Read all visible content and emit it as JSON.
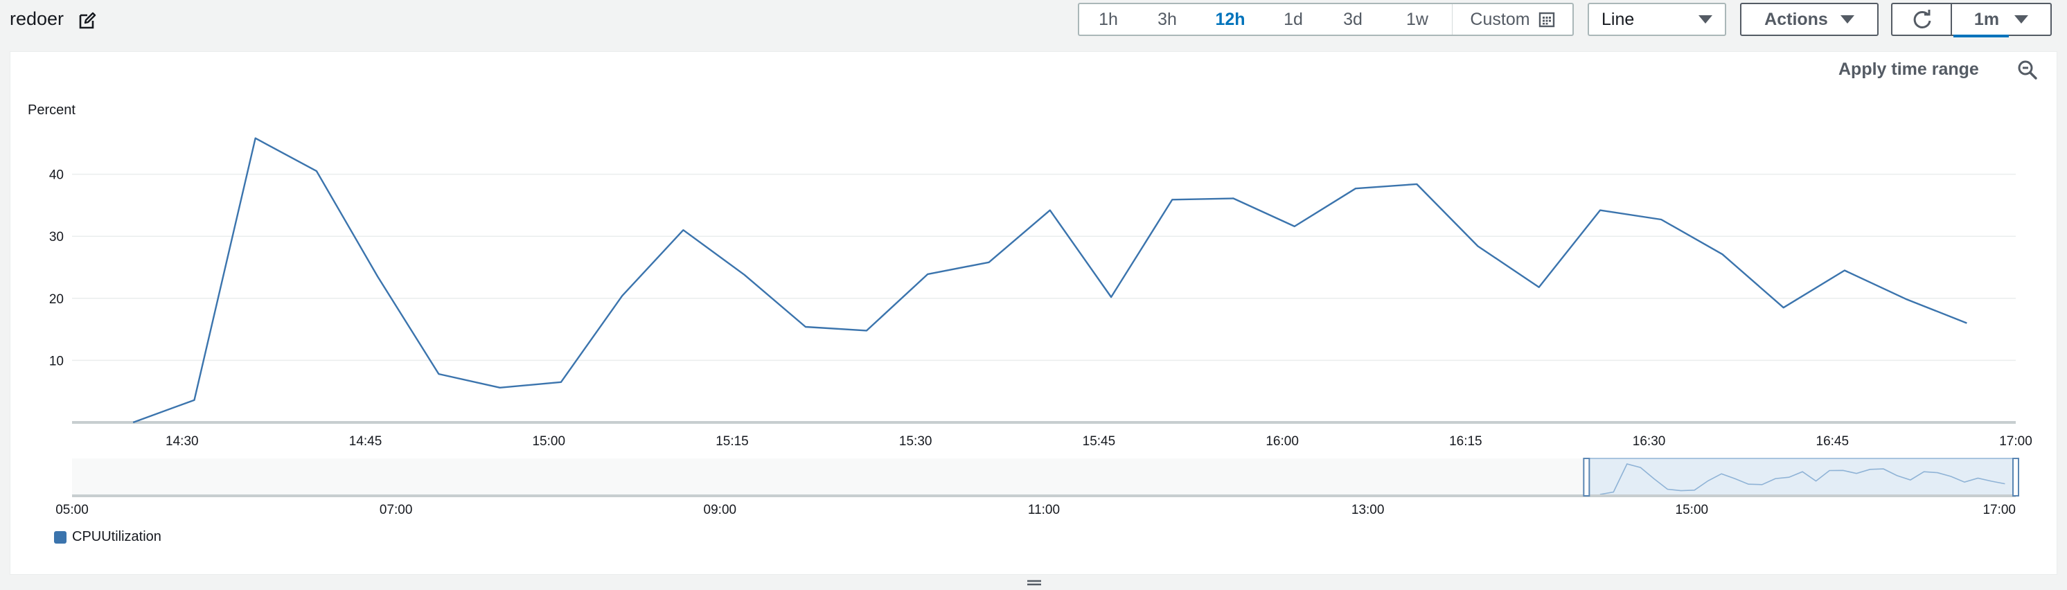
{
  "widget": {
    "title": "redoer",
    "edit_icon": "edit-icon",
    "time_range": {
      "options": [
        "1h",
        "3h",
        "12h",
        "1d",
        "3d",
        "1w"
      ],
      "selected": "12h",
      "custom_label": "Custom",
      "custom_icon": "calendar-icon"
    },
    "chart_type_label": "Line",
    "actions_label": "Actions",
    "refresh_icon": "refresh-icon",
    "interval_label": "1m",
    "apply_time_range_label": "Apply time range",
    "zoom_icon": "zoom-out-icon",
    "colors": {
      "accent": "#0073bb",
      "series": "#3b74ad",
      "border": "#aab7b8",
      "background": "#f2f3f3"
    }
  },
  "chart_data": {
    "type": "line",
    "ylabel": "Percent",
    "yticks": [
      10,
      20,
      30,
      40
    ],
    "ylim": [
      0,
      50
    ],
    "xlim": [
      "14:21",
      "17:00"
    ],
    "xticks": [
      "14:30",
      "14:45",
      "15:00",
      "15:15",
      "15:30",
      "15:45",
      "16:00",
      "16:15",
      "16:30",
      "16:45",
      "17:00"
    ],
    "grid": true,
    "legend_position": "bottom-left",
    "series": [
      {
        "name": "CPUUtilization",
        "color": "#3b74ad",
        "points": [
          [
            "14:26",
            0.0
          ],
          [
            "14:31",
            3.6
          ],
          [
            "14:36",
            45.8
          ],
          [
            "14:41",
            40.5
          ],
          [
            "14:46",
            23.5
          ],
          [
            "14:51",
            7.8
          ],
          [
            "14:56",
            5.6
          ],
          [
            "15:01",
            6.5
          ],
          [
            "15:06",
            20.4
          ],
          [
            "15:11",
            31.0
          ],
          [
            "15:16",
            23.8
          ],
          [
            "15:21",
            15.4
          ],
          [
            "15:26",
            14.8
          ],
          [
            "15:31",
            23.9
          ],
          [
            "15:36",
            25.8
          ],
          [
            "15:41",
            34.2
          ],
          [
            "15:46",
            20.2
          ],
          [
            "15:51",
            35.9
          ],
          [
            "15:56",
            36.1
          ],
          [
            "16:01",
            31.6
          ],
          [
            "16:06",
            37.7
          ],
          [
            "16:11",
            38.4
          ],
          [
            "16:16",
            28.4
          ],
          [
            "16:21",
            21.8
          ],
          [
            "16:26",
            34.2
          ],
          [
            "16:31",
            32.7
          ],
          [
            "16:36",
            27.1
          ],
          [
            "16:41",
            18.5
          ],
          [
            "16:46",
            24.5
          ],
          [
            "16:51",
            19.9
          ],
          [
            "16:56",
            16.0
          ]
        ]
      }
    ],
    "overview": {
      "xlim": [
        "05:00",
        "17:00"
      ],
      "xticks": [
        "05:00",
        "07:00",
        "09:00",
        "11:00",
        "13:00",
        "15:00",
        "17:00"
      ],
      "selection": [
        "14:21",
        "17:00"
      ]
    }
  }
}
